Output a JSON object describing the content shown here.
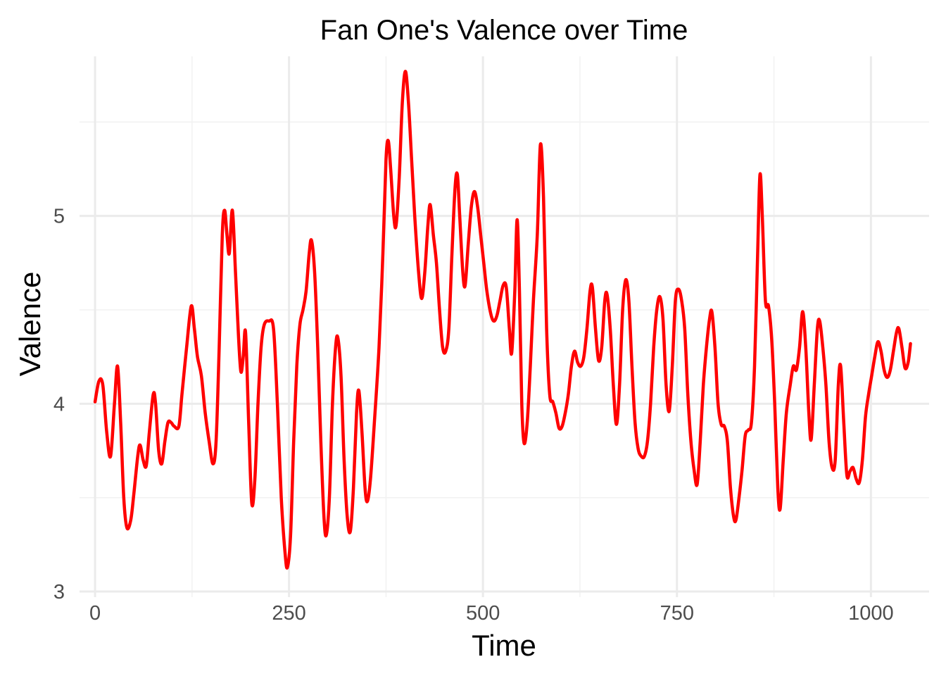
{
  "chart_data": {
    "type": "line",
    "title": "Fan One's Valence over Time",
    "xlabel": "Time",
    "ylabel": "Valence",
    "xlim": [
      -20,
      1075
    ],
    "ylim": [
      2.97,
      5.85
    ],
    "x_ticks": [
      0,
      250,
      500,
      750,
      1000
    ],
    "x_tick_labels": [
      "0",
      "250",
      "500",
      "750",
      "1000"
    ],
    "x_minor_ticks": [
      125,
      375,
      625,
      875
    ],
    "y_ticks": [
      3,
      4,
      5
    ],
    "y_tick_labels": [
      "3",
      "4",
      "5"
    ],
    "y_minor_ticks": [
      3.5,
      4.5,
      5.5
    ],
    "grid": true,
    "legend": "none",
    "colors": {
      "line": "#ff0000"
    },
    "series": [
      {
        "points": [
          [
            0,
            4.01
          ],
          [
            5,
            4.12
          ],
          [
            10,
            4.1
          ],
          [
            15,
            3.85
          ],
          [
            20,
            3.72
          ],
          [
            25,
            4.0
          ],
          [
            29,
            4.2
          ],
          [
            33,
            3.9
          ],
          [
            37,
            3.5
          ],
          [
            41,
            3.34
          ],
          [
            46,
            3.38
          ],
          [
            50,
            3.52
          ],
          [
            55,
            3.72
          ],
          [
            58,
            3.78
          ],
          [
            62,
            3.7
          ],
          [
            66,
            3.67
          ],
          [
            70,
            3.85
          ],
          [
            75,
            4.05
          ],
          [
            78,
            4.0
          ],
          [
            82,
            3.75
          ],
          [
            86,
            3.68
          ],
          [
            90,
            3.8
          ],
          [
            94,
            3.9
          ],
          [
            98,
            3.9
          ],
          [
            102,
            3.88
          ],
          [
            108,
            3.88
          ],
          [
            112,
            4.05
          ],
          [
            118,
            4.3
          ],
          [
            124,
            4.52
          ],
          [
            128,
            4.4
          ],
          [
            132,
            4.25
          ],
          [
            137,
            4.15
          ],
          [
            142,
            3.95
          ],
          [
            147,
            3.8
          ],
          [
            152,
            3.68
          ],
          [
            156,
            3.8
          ],
          [
            160,
            4.3
          ],
          [
            164,
            4.9
          ],
          [
            167,
            5.03
          ],
          [
            170,
            4.9
          ],
          [
            173,
            4.8
          ],
          [
            177,
            5.03
          ],
          [
            181,
            4.7
          ],
          [
            185,
            4.35
          ],
          [
            188,
            4.17
          ],
          [
            191,
            4.25
          ],
          [
            194,
            4.38
          ],
          [
            198,
            3.9
          ],
          [
            202,
            3.47
          ],
          [
            206,
            3.6
          ],
          [
            210,
            4.0
          ],
          [
            214,
            4.3
          ],
          [
            218,
            4.42
          ],
          [
            224,
            4.44
          ],
          [
            230,
            4.4
          ],
          [
            235,
            4.0
          ],
          [
            240,
            3.5
          ],
          [
            245,
            3.2
          ],
          [
            248,
            3.13
          ],
          [
            252,
            3.3
          ],
          [
            256,
            3.8
          ],
          [
            260,
            4.2
          ],
          [
            264,
            4.42
          ],
          [
            268,
            4.5
          ],
          [
            272,
            4.6
          ],
          [
            276,
            4.8
          ],
          [
            279,
            4.87
          ],
          [
            283,
            4.7
          ],
          [
            287,
            4.3
          ],
          [
            291,
            3.8
          ],
          [
            295,
            3.4
          ],
          [
            298,
            3.3
          ],
          [
            302,
            3.5
          ],
          [
            306,
            4.0
          ],
          [
            310,
            4.3
          ],
          [
            313,
            4.35
          ],
          [
            317,
            4.15
          ],
          [
            321,
            3.7
          ],
          [
            325,
            3.4
          ],
          [
            329,
            3.32
          ],
          [
            333,
            3.55
          ],
          [
            337,
            3.95
          ],
          [
            340,
            4.07
          ],
          [
            344,
            3.85
          ],
          [
            348,
            3.55
          ],
          [
            351,
            3.48
          ],
          [
            355,
            3.6
          ],
          [
            360,
            3.9
          ],
          [
            366,
            4.3
          ],
          [
            371,
            4.8
          ],
          [
            375,
            5.3
          ],
          [
            378,
            5.4
          ],
          [
            381,
            5.25
          ],
          [
            385,
            5.0
          ],
          [
            388,
            4.95
          ],
          [
            392,
            5.2
          ],
          [
            396,
            5.6
          ],
          [
            400,
            5.77
          ],
          [
            404,
            5.6
          ],
          [
            408,
            5.3
          ],
          [
            412,
            5.0
          ],
          [
            417,
            4.7
          ],
          [
            421,
            4.56
          ],
          [
            425,
            4.7
          ],
          [
            429,
            4.95
          ],
          [
            432,
            5.06
          ],
          [
            436,
            4.9
          ],
          [
            440,
            4.75
          ],
          [
            444,
            4.5
          ],
          [
            448,
            4.3
          ],
          [
            452,
            4.28
          ],
          [
            456,
            4.4
          ],
          [
            460,
            4.8
          ],
          [
            464,
            5.15
          ],
          [
            467,
            5.22
          ],
          [
            470,
            5.0
          ],
          [
            474,
            4.7
          ],
          [
            477,
            4.63
          ],
          [
            481,
            4.85
          ],
          [
            485,
            5.05
          ],
          [
            489,
            5.13
          ],
          [
            493,
            5.05
          ],
          [
            497,
            4.9
          ],
          [
            501,
            4.75
          ],
          [
            505,
            4.6
          ],
          [
            510,
            4.48
          ],
          [
            514,
            4.44
          ],
          [
            518,
            4.47
          ],
          [
            522,
            4.55
          ],
          [
            526,
            4.63
          ],
          [
            530,
            4.62
          ],
          [
            534,
            4.4
          ],
          [
            537,
            4.27
          ],
          [
            541,
            4.6
          ],
          [
            544,
            4.98
          ],
          [
            547,
            4.6
          ],
          [
            550,
            4.0
          ],
          [
            553,
            3.79
          ],
          [
            557,
            3.9
          ],
          [
            561,
            4.2
          ],
          [
            565,
            4.55
          ],
          [
            570,
            4.9
          ],
          [
            574,
            5.38
          ],
          [
            578,
            5.1
          ],
          [
            582,
            4.4
          ],
          [
            586,
            4.05
          ],
          [
            590,
            4.01
          ],
          [
            594,
            3.95
          ],
          [
            598,
            3.87
          ],
          [
            602,
            3.88
          ],
          [
            606,
            3.95
          ],
          [
            610,
            4.05
          ],
          [
            614,
            4.2
          ],
          [
            618,
            4.28
          ],
          [
            622,
            4.22
          ],
          [
            626,
            4.2
          ],
          [
            630,
            4.25
          ],
          [
            634,
            4.4
          ],
          [
            638,
            4.6
          ],
          [
            641,
            4.62
          ],
          [
            645,
            4.4
          ],
          [
            649,
            4.23
          ],
          [
            653,
            4.3
          ],
          [
            657,
            4.55
          ],
          [
            660,
            4.58
          ],
          [
            664,
            4.4
          ],
          [
            668,
            4.1
          ],
          [
            672,
            3.89
          ],
          [
            676,
            4.1
          ],
          [
            680,
            4.5
          ],
          [
            684,
            4.66
          ],
          [
            688,
            4.55
          ],
          [
            692,
            4.2
          ],
          [
            696,
            3.9
          ],
          [
            700,
            3.76
          ],
          [
            704,
            3.72
          ],
          [
            708,
            3.72
          ],
          [
            712,
            3.8
          ],
          [
            716,
            4.0
          ],
          [
            720,
            4.3
          ],
          [
            724,
            4.5
          ],
          [
            728,
            4.57
          ],
          [
            732,
            4.45
          ],
          [
            736,
            4.1
          ],
          [
            740,
            3.96
          ],
          [
            744,
            4.2
          ],
          [
            748,
            4.55
          ],
          [
            752,
            4.61
          ],
          [
            756,
            4.55
          ],
          [
            760,
            4.4
          ],
          [
            764,
            4.05
          ],
          [
            768,
            3.8
          ],
          [
            772,
            3.65
          ],
          [
            776,
            3.57
          ],
          [
            780,
            3.8
          ],
          [
            784,
            4.1
          ],
          [
            788,
            4.3
          ],
          [
            792,
            4.45
          ],
          [
            795,
            4.49
          ],
          [
            799,
            4.3
          ],
          [
            803,
            4.0
          ],
          [
            807,
            3.89
          ],
          [
            811,
            3.88
          ],
          [
            815,
            3.8
          ],
          [
            819,
            3.55
          ],
          [
            823,
            3.4
          ],
          [
            826,
            3.38
          ],
          [
            830,
            3.5
          ],
          [
            834,
            3.65
          ],
          [
            838,
            3.83
          ],
          [
            842,
            3.86
          ],
          [
            846,
            3.9
          ],
          [
            850,
            4.2
          ],
          [
            854,
            4.8
          ],
          [
            857,
            5.22
          ],
          [
            860,
            5.0
          ],
          [
            864,
            4.55
          ],
          [
            868,
            4.52
          ],
          [
            872,
            4.35
          ],
          [
            876,
            4.0
          ],
          [
            880,
            3.55
          ],
          [
            883,
            3.44
          ],
          [
            887,
            3.7
          ],
          [
            891,
            3.95
          ],
          [
            896,
            4.1
          ],
          [
            900,
            4.2
          ],
          [
            904,
            4.18
          ],
          [
            908,
            4.3
          ],
          [
            912,
            4.49
          ],
          [
            916,
            4.3
          ],
          [
            920,
            3.95
          ],
          [
            923,
            3.81
          ],
          [
            927,
            4.1
          ],
          [
            931,
            4.4
          ],
          [
            934,
            4.44
          ],
          [
            938,
            4.3
          ],
          [
            942,
            4.1
          ],
          [
            946,
            3.8
          ],
          [
            950,
            3.66
          ],
          [
            954,
            3.7
          ],
          [
            958,
            4.1
          ],
          [
            961,
            4.2
          ],
          [
            965,
            3.9
          ],
          [
            969,
            3.62
          ],
          [
            973,
            3.64
          ],
          [
            977,
            3.66
          ],
          [
            981,
            3.6
          ],
          [
            985,
            3.58
          ],
          [
            989,
            3.7
          ],
          [
            993,
            3.93
          ],
          [
            997,
            4.05
          ],
          [
            1001,
            4.15
          ],
          [
            1005,
            4.25
          ],
          [
            1009,
            4.33
          ],
          [
            1013,
            4.28
          ],
          [
            1017,
            4.18
          ],
          [
            1021,
            4.14
          ],
          [
            1025,
            4.18
          ],
          [
            1029,
            4.28
          ],
          [
            1033,
            4.38
          ],
          [
            1036,
            4.4
          ],
          [
            1040,
            4.3
          ],
          [
            1044,
            4.19
          ],
          [
            1048,
            4.22
          ],
          [
            1051,
            4.32
          ]
        ]
      }
    ]
  }
}
